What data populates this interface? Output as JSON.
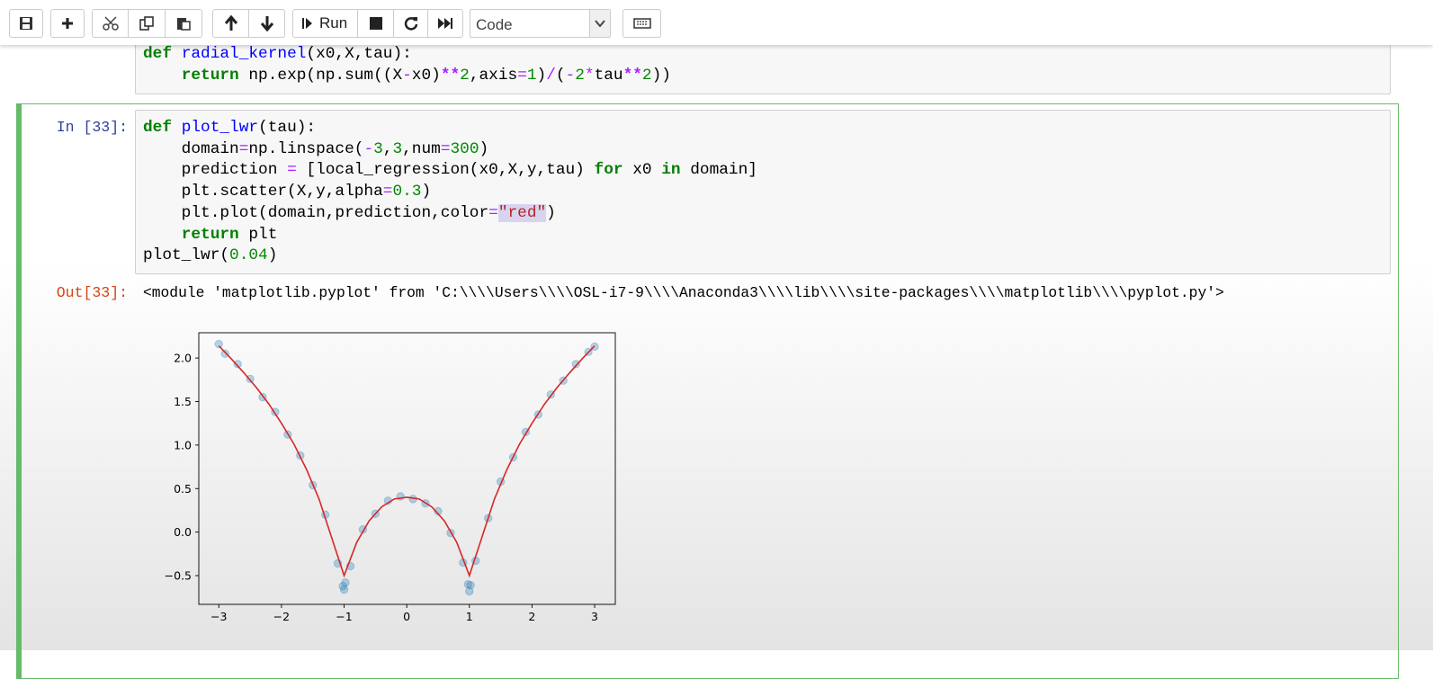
{
  "toolbar": {
    "run_label": "Run",
    "cell_type": "Code"
  },
  "cells": [
    {
      "lines": [
        [
          {
            "text": "def",
            "color": "#008000",
            "bold": true
          },
          " ",
          {
            "text": "radial_kernel",
            "color": "#0000ff"
          },
          "(x0,X,tau):"
        ],
        [
          "    ",
          {
            "text": "return",
            "color": "#008000",
            "bold": true
          },
          " np.exp(np.sum((X",
          {
            "text": "-",
            "color": "#aa22ff"
          },
          "x0)",
          {
            "text": "**",
            "color": "#aa22ff",
            "bold": true
          },
          {
            "text": "2",
            "color": "#008800"
          },
          ",axis",
          {
            "text": "=",
            "color": "#aa22ff"
          },
          {
            "text": "1",
            "color": "#008800"
          },
          ")",
          {
            "text": "/",
            "color": "#aa22ff"
          },
          "(",
          {
            "text": "-",
            "color": "#aa22ff"
          },
          {
            "text": "2",
            "color": "#008800"
          },
          {
            "text": "*",
            "color": "#aa22ff"
          },
          "tau",
          {
            "text": "**",
            "color": "#aa22ff",
            "bold": true
          },
          {
            "text": "2",
            "color": "#008800"
          },
          "))"
        ]
      ]
    },
    {
      "prompt": "In [33]:",
      "lines": [
        [
          {
            "text": "def",
            "color": "#008000",
            "bold": true
          },
          " ",
          {
            "text": "plot_lwr",
            "color": "#0000ff"
          },
          "(tau):"
        ],
        [
          "    domain",
          {
            "text": "=",
            "color": "#aa22ff"
          },
          "np.linspace(",
          {
            "text": "-",
            "color": "#aa22ff"
          },
          {
            "text": "3",
            "color": "#008800"
          },
          ",",
          {
            "text": "3",
            "color": "#008800"
          },
          ",num",
          {
            "text": "=",
            "color": "#aa22ff"
          },
          {
            "text": "300",
            "color": "#008800"
          },
          ")"
        ],
        [
          "    prediction ",
          {
            "text": "=",
            "color": "#aa22ff"
          },
          " [local_regression(x0,X,y,tau) ",
          {
            "text": "for",
            "color": "#008000",
            "bold": true
          },
          " x0 ",
          {
            "text": "in",
            "color": "#008000",
            "bold": true
          },
          " domain]"
        ],
        [
          "    plt.scatter(X,y,alpha",
          {
            "text": "=",
            "color": "#aa22ff"
          },
          {
            "text": "0.3",
            "color": "#008800"
          },
          ")"
        ],
        [
          "    plt.plot(domain,prediction,color",
          {
            "text": "=",
            "color": "#aa22ff"
          },
          {
            "text": "\"red\"",
            "color": "#ba2121",
            "highlight": "#d7d4f0"
          },
          ")"
        ],
        [
          "    ",
          {
            "text": "return",
            "color": "#008000",
            "bold": true
          },
          " plt"
        ],
        [
          "plot_lwr(",
          {
            "text": "0.04",
            "color": "#008800"
          },
          ")"
        ]
      ],
      "output": {
        "prompt": "Out[33]:",
        "text": "<module 'matplotlib.pyplot' from 'C:\\\\\\\\Users\\\\\\\\OSL-i7-9\\\\\\\\Anaconda3\\\\\\\\lib\\\\\\\\site-packages\\\\\\\\matplotlib\\\\\\\\pyplot.py'>",
        "chart_data": {
          "type": "scatter",
          "xlim": [
            -3.32,
            3.33
          ],
          "ylim": [
            -0.83,
            2.29
          ],
          "xticks": [
            {
              "value": -3,
              "label": "−3"
            },
            {
              "value": -2,
              "label": "−2"
            },
            {
              "value": -1,
              "label": "−1"
            },
            0,
            1,
            2,
            3
          ],
          "yticks": [
            {
              "value": -0.5,
              "label": "−0.5"
            },
            {
              "value": 0,
              "label": "0.0"
            },
            {
              "value": 0.5,
              "label": "0.5"
            },
            {
              "value": 1,
              "label": "1.0"
            },
            {
              "value": 1.5,
              "label": "1.5"
            },
            {
              "value": 2,
              "label": "2.0"
            }
          ],
          "series": [
            {
              "type": "scatter",
              "color": "#1f77b4",
              "alpha": 0.3,
              "x": [
                -3,
                -2.9,
                -2.7,
                -2.5,
                -2.3,
                -2.1,
                -1.9,
                -1.7,
                -1.5,
                -1.3,
                -1.1,
                -1.02,
                -1,
                -0.98,
                -0.9,
                -0.7,
                -0.5,
                -0.3,
                -0.1,
                0.1,
                0.3,
                0.5,
                0.7,
                0.9,
                0.98,
                1,
                1.02,
                1.1,
                1.3,
                1.5,
                1.7,
                1.9,
                2.1,
                2.3,
                2.5,
                2.7,
                2.9,
                3
              ],
              "values": [
                2.16,
                2.05,
                1.93,
                1.76,
                1.55,
                1.38,
                1.12,
                0.88,
                0.54,
                0.2,
                -0.36,
                -0.62,
                -0.66,
                -0.58,
                -0.39,
                0.03,
                0.21,
                0.36,
                0.41,
                0.38,
                0.33,
                0.24,
                -0.01,
                -0.35,
                -0.6,
                -0.68,
                -0.61,
                -0.33,
                0.16,
                0.58,
                0.86,
                1.15,
                1.35,
                1.58,
                1.74,
                1.93,
                2.07,
                2.13
              ]
            },
            {
              "type": "line",
              "color": "#d62728",
              "x": [
                -3,
                -2.8,
                -2.6,
                -2.4,
                -2.2,
                -2,
                -1.8,
                -1.6,
                -1.4,
                -1.2,
                -1,
                -0.8,
                -0.6,
                -0.4,
                -0.2,
                0,
                0.2,
                0.4,
                0.6,
                0.8,
                1,
                1.2,
                1.4,
                1.6,
                1.8,
                2,
                2.2,
                2.4,
                2.6,
                2.8,
                3
              ],
              "values": [
                2.14,
                1.99,
                1.83,
                1.66,
                1.47,
                1.25,
                1.01,
                0.72,
                0.38,
                -0.06,
                -0.5,
                -0.12,
                0.13,
                0.29,
                0.38,
                0.4,
                0.38,
                0.29,
                0.13,
                -0.12,
                -0.5,
                -0.06,
                0.38,
                0.72,
                1.01,
                1.25,
                1.47,
                1.66,
                1.83,
                1.99,
                2.14
              ]
            }
          ]
        }
      }
    }
  ]
}
